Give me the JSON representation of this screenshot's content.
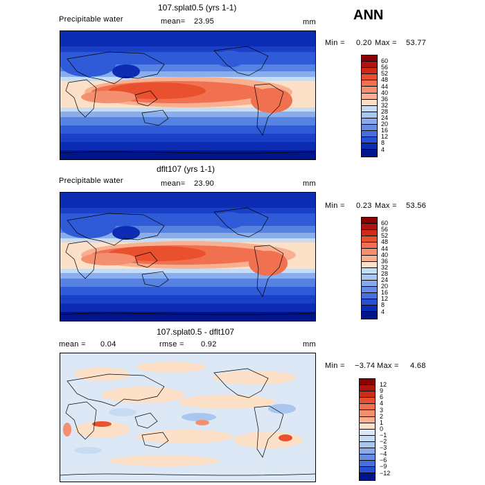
{
  "season": "ANN",
  "panels": [
    {
      "title": "107.splat0.5 (yrs 1-1)",
      "left_label": "Precipitable water",
      "mean_label": "mean=",
      "mean_value": "23.95",
      "units": "mm",
      "min_label": "Min =",
      "min_value": "0.20",
      "max_label": "Max =",
      "max_value": "53.77",
      "colorbar_ticks": [
        "60",
        "56",
        "52",
        "48",
        "44",
        "40",
        "36",
        "32",
        "28",
        "24",
        "20",
        "16",
        "12",
        "8",
        "4"
      ],
      "colorbar_colors": [
        "#8b0000",
        "#b0140e",
        "#d02a18",
        "#e8502e",
        "#f07050",
        "#f49070",
        "#f8b090",
        "#fde0c8",
        "#c6dcf2",
        "#a8c6ee",
        "#88aaea",
        "#668ce4",
        "#4670de",
        "#2850d2",
        "#0c2cb4",
        "#00148c"
      ]
    },
    {
      "title": "dflt107 (yrs 1-1)",
      "left_label": "Precipitable water",
      "mean_label": "mean=",
      "mean_value": "23.90",
      "units": "mm",
      "min_label": "Min =",
      "min_value": "0.23",
      "max_label": "Max =",
      "max_value": "53.56",
      "colorbar_ticks": [
        "60",
        "56",
        "52",
        "48",
        "44",
        "40",
        "36",
        "32",
        "28",
        "24",
        "20",
        "16",
        "12",
        "8",
        "4"
      ],
      "colorbar_colors": [
        "#8b0000",
        "#b0140e",
        "#d02a18",
        "#e8502e",
        "#f07050",
        "#f49070",
        "#f8b090",
        "#fde0c8",
        "#c6dcf2",
        "#a8c6ee",
        "#88aaea",
        "#668ce4",
        "#4670de",
        "#2850d2",
        "#0c2cb4",
        "#00148c"
      ]
    },
    {
      "title": "107.splat0.5 - dflt107",
      "left_label": "mean =",
      "mean_label": "rmse =",
      "left_value": "0.04",
      "mean_value": "0.92",
      "units": "mm",
      "min_label": "Min =",
      "min_value": "−3.74",
      "max_label": "Max =",
      "max_value": "4.68",
      "colorbar_ticks": [
        "12",
        "9",
        "6",
        "4",
        "3",
        "2",
        "1",
        "0",
        "−1",
        "−2",
        "−3",
        "−4",
        "−6",
        "−9",
        "−12"
      ],
      "colorbar_colors": [
        "#8b0000",
        "#b0140e",
        "#d02a18",
        "#e8502e",
        "#f07050",
        "#f49070",
        "#f8b090",
        "#fde0c8",
        "#dce8f6",
        "#c6dcf2",
        "#a8c6ee",
        "#88aaea",
        "#668ce4",
        "#4670de",
        "#2850d2",
        "#00148c"
      ]
    }
  ]
}
